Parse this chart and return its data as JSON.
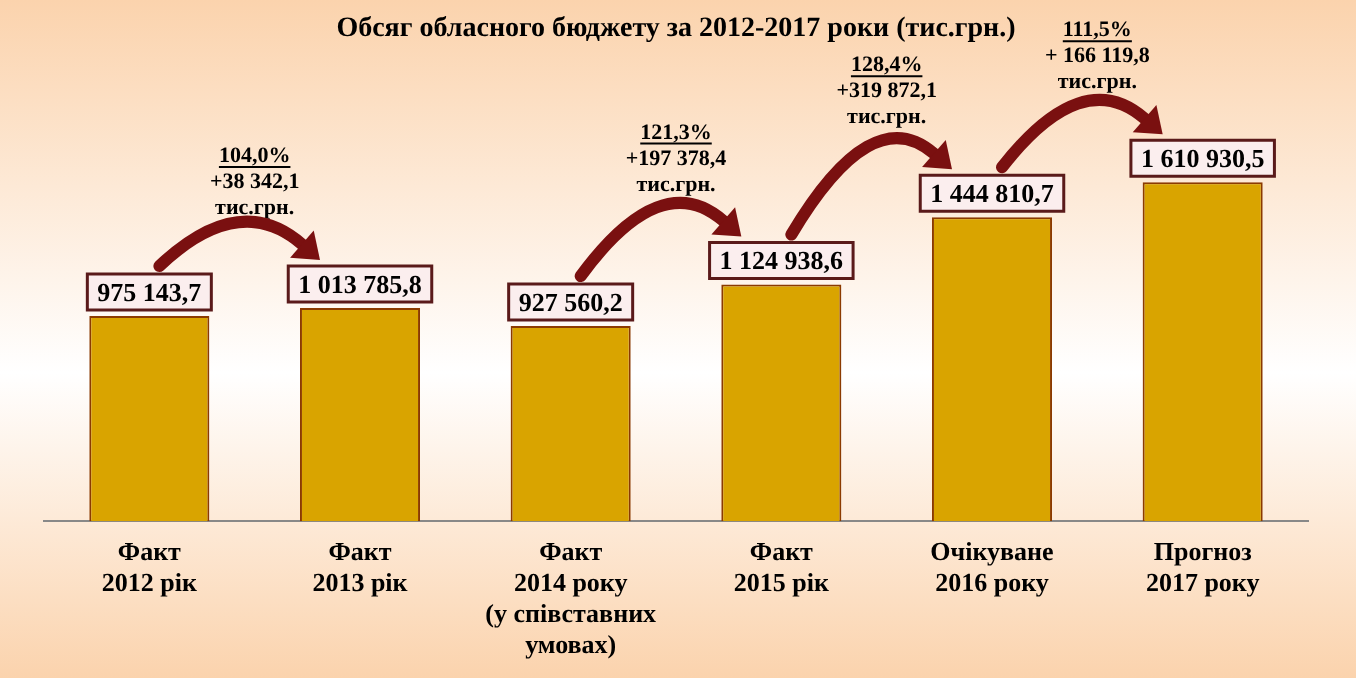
{
  "chart_data": {
    "type": "bar",
    "title": "Обсяг обласного бюджету за 2012-2017 роки (тис.грн.)",
    "categories": [
      "Факт\n2012 рік",
      "Факт\n2013 рік",
      "Факт\n2014 року\n(у співставних\nумовах)",
      "Факт\n2015 рік",
      "Очікуване\n2016 року",
      "Прогноз\n2017 року"
    ],
    "values": [
      975143.7,
      1013785.8,
      927560.2,
      1124938.6,
      1444810.7,
      1610930.5
    ],
    "value_labels": [
      "975 143,7",
      "1 013 785,8",
      "927 560,2",
      "1 124 938,6",
      "1 444 810,7",
      "1 610 930,5"
    ],
    "color": "#d9a400",
    "annotations": [
      "104,0%\n+38 342,1\nтис.грн.",
      "121,3%\n+197 378,4\nтис.грн.",
      "128,4%\n+319 872,1\nтис.грн.",
      "111,5%\n+ 166 119,8\nтис.грн."
    ],
    "tick_labels": "x",
    "grid": false,
    "legend": false
  }
}
